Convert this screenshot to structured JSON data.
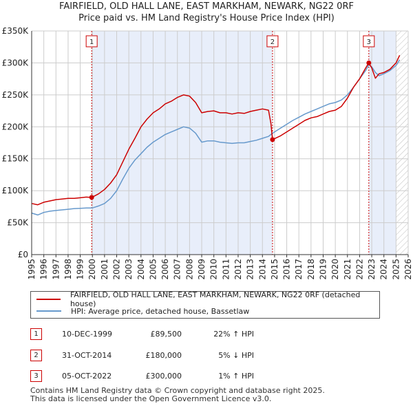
{
  "chart_data": {
    "type": "line",
    "title": "FAIRFIELD, OLD HALL LANE, EAST MARKHAM, NEWARK, NG22 0RF",
    "subtitle": "Price paid vs. HM Land Registry's House Price Index (HPI)",
    "xlim": [
      1995,
      2026
    ],
    "ylim": [
      0,
      350000
    ],
    "y_ticks": [
      0,
      50000,
      100000,
      150000,
      200000,
      250000,
      300000,
      350000
    ],
    "y_tick_labels": [
      "£0",
      "£50K",
      "£100K",
      "£150K",
      "£200K",
      "£250K",
      "£300K",
      "£350K"
    ],
    "x_ticks": [
      1995,
      1996,
      1997,
      1998,
      1999,
      2000,
      2001,
      2002,
      2003,
      2004,
      2005,
      2006,
      2007,
      2008,
      2009,
      2010,
      2011,
      2012,
      2013,
      2014,
      2015,
      2016,
      2017,
      2018,
      2019,
      2020,
      2021,
      2022,
      2023,
      2024,
      2025,
      2026
    ],
    "grid": true,
    "colors": {
      "property": "#cc0000",
      "hpi": "#6699cc",
      "shade": "#e8eefa",
      "grid": "#cccccc"
    },
    "shaded_ranges": [
      [
        1999.94,
        2014.83
      ],
      [
        2022.76,
        2025.0
      ]
    ],
    "future_hatch_from": 2025.0,
    "series": [
      {
        "name": "FAIRFIELD, OLD HALL LANE, EAST MARKHAM, NEWARK, NG22 0RF (detached house)",
        "color": "#cc0000",
        "x": [
          1995.0,
          1995.5,
          1996.0,
          1996.5,
          1997.0,
          1997.5,
          1998.0,
          1998.5,
          1999.0,
          1999.5,
          1999.94,
          2000.5,
          2001.0,
          2001.5,
          2002.0,
          2002.5,
          2003.0,
          2003.5,
          2004.0,
          2004.5,
          2005.0,
          2005.5,
          2006.0,
          2006.5,
          2007.0,
          2007.5,
          2008.0,
          2008.5,
          2009.0,
          2009.5,
          2010.0,
          2010.5,
          2011.0,
          2011.5,
          2012.0,
          2012.5,
          2013.0,
          2013.5,
          2014.0,
          2014.5,
          2014.7,
          2014.83,
          2015.5,
          2016.0,
          2016.5,
          2017.0,
          2017.5,
          2018.0,
          2018.5,
          2019.0,
          2019.5,
          2020.0,
          2020.5,
          2021.0,
          2021.5,
          2022.0,
          2022.5,
          2022.76,
          2023.0,
          2023.3,
          2023.6,
          2024.0,
          2024.5,
          2025.0,
          2025.3
        ],
        "y": [
          80000,
          78000,
          82000,
          84000,
          86000,
          87000,
          88000,
          88000,
          89000,
          90000,
          89500,
          95000,
          102000,
          112000,
          125000,
          145000,
          165000,
          182000,
          200000,
          212000,
          222000,
          228000,
          236000,
          240000,
          246000,
          250000,
          248000,
          238000,
          222000,
          224000,
          225000,
          222000,
          222000,
          220000,
          222000,
          221000,
          224000,
          226000,
          228000,
          226000,
          205000,
          180000,
          186000,
          192000,
          198000,
          204000,
          210000,
          214000,
          216000,
          220000,
          224000,
          226000,
          232000,
          245000,
          262000,
          275000,
          292000,
          300000,
          292000,
          276000,
          283000,
          285000,
          290000,
          300000,
          312000
        ]
      },
      {
        "name": "HPI: Average price, detached house, Bassetlaw",
        "color": "#6699cc",
        "x": [
          1995.0,
          1995.5,
          1996.0,
          1996.5,
          1997.0,
          1997.5,
          1998.0,
          1998.5,
          1999.0,
          1999.5,
          2000.0,
          2000.5,
          2001.0,
          2001.5,
          2002.0,
          2002.5,
          2003.0,
          2003.5,
          2004.0,
          2004.5,
          2005.0,
          2005.5,
          2006.0,
          2006.5,
          2007.0,
          2007.5,
          2008.0,
          2008.5,
          2009.0,
          2009.5,
          2010.0,
          2010.5,
          2011.0,
          2011.5,
          2012.0,
          2012.5,
          2013.0,
          2013.5,
          2014.0,
          2014.5,
          2014.83,
          2015.5,
          2016.0,
          2016.5,
          2017.0,
          2017.5,
          2018.0,
          2018.5,
          2019.0,
          2019.5,
          2020.0,
          2020.5,
          2021.0,
          2021.5,
          2022.0,
          2022.5,
          2022.76,
          2023.0,
          2023.3,
          2023.6,
          2024.0,
          2024.5,
          2025.0,
          2025.3
        ],
        "y": [
          65000,
          62000,
          66000,
          68000,
          69000,
          70000,
          71000,
          72000,
          72500,
          73000,
          73000,
          76000,
          80000,
          88000,
          100000,
          118000,
          135000,
          148000,
          158000,
          168000,
          176000,
          182000,
          188000,
          192000,
          196000,
          200000,
          198000,
          190000,
          176000,
          178000,
          178000,
          176000,
          175000,
          174000,
          175000,
          175000,
          177000,
          179000,
          182000,
          185000,
          190000,
          198000,
          204000,
          210000,
          215000,
          220000,
          224000,
          228000,
          232000,
          236000,
          238000,
          242000,
          250000,
          262000,
          275000,
          288000,
          297000,
          294000,
          285000,
          280000,
          283000,
          288000,
          296000,
          305000
        ]
      }
    ],
    "sale_points": [
      {
        "label": "1",
        "x": 1999.94,
        "y": 89500
      },
      {
        "label": "2",
        "x": 2014.83,
        "y": 180000
      },
      {
        "label": "3",
        "x": 2022.76,
        "y": 300000
      }
    ]
  },
  "transactions": [
    {
      "num": "1",
      "date": "10-DEC-1999",
      "price": "£89,500",
      "hpi": "22% ↑ HPI"
    },
    {
      "num": "2",
      "date": "31-OCT-2014",
      "price": "£180,000",
      "hpi": "5% ↓ HPI"
    },
    {
      "num": "3",
      "date": "05-OCT-2022",
      "price": "£300,000",
      "hpi": "1% ↑ HPI"
    }
  ],
  "footer": {
    "line1": "Contains HM Land Registry data © Crown copyright and database right 2025.",
    "line2": "This data is licensed under the Open Government Licence v3.0."
  }
}
